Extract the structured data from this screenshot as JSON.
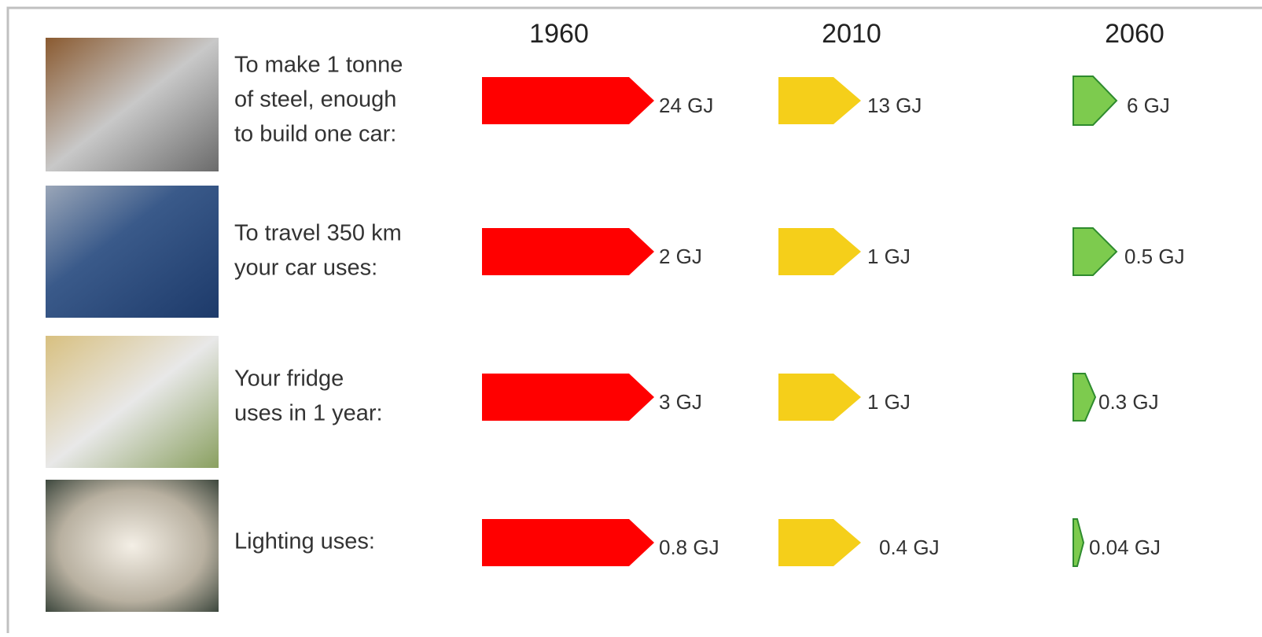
{
  "header": {
    "years": [
      "1960",
      "2010",
      "2060"
    ]
  },
  "rows": [
    {
      "label": [
        "To make 1 tonne",
        "of steel, enough",
        "to build one car:"
      ],
      "values": [
        "24 GJ",
        "13 GJ",
        "6 GJ"
      ]
    },
    {
      "label": [
        "To travel 350 km",
        "your car uses:"
      ],
      "values": [
        "2 GJ",
        "1 GJ",
        "0.5 GJ"
      ]
    },
    {
      "label": [
        "Your fridge",
        "uses in 1 year:"
      ],
      "values": [
        "3 GJ",
        "1 GJ",
        "0.3 GJ"
      ]
    },
    {
      "label": [
        "Lighting uses:"
      ],
      "values": [
        "0.8 GJ",
        "0.4 GJ",
        "0.04 GJ"
      ]
    }
  ]
}
